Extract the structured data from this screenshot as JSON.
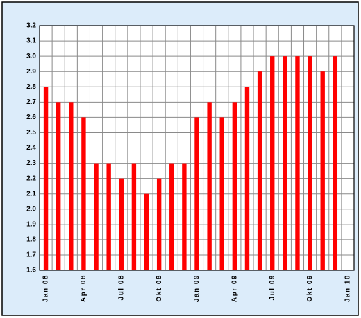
{
  "chart_data": {
    "type": "bar",
    "categories": [
      "Jan 08",
      null,
      null,
      "Apr 08",
      null,
      null,
      "Jul 08",
      null,
      null,
      "Okt 08",
      null,
      null,
      "Jan 09",
      null,
      null,
      "Apr 09",
      null,
      null,
      "Jul 09",
      null,
      null,
      "Okt 09",
      null,
      null,
      "Jan 10"
    ],
    "values": [
      2.8,
      2.7,
      2.7,
      2.6,
      2.3,
      2.3,
      2.2,
      2.3,
      2.1,
      2.2,
      2.3,
      2.3,
      2.6,
      2.7,
      2.6,
      2.7,
      2.8,
      2.9,
      3.0,
      3.0,
      3.0,
      3.0,
      2.9,
      3.0,
      null
    ],
    "color": "#ff0000",
    "ylim": [
      1.6,
      3.2
    ],
    "yticks": [
      1.6,
      1.7,
      1.8,
      1.9,
      {
        "value": 2,
        "label": "2.0"
      },
      2.1,
      2.2,
      2.3,
      2.4,
      2.5,
      2.6,
      2.7,
      2.8,
      2.9,
      {
        "value": 3,
        "label": "3.0"
      },
      3.1,
      3.2
    ],
    "grid": true
  }
}
